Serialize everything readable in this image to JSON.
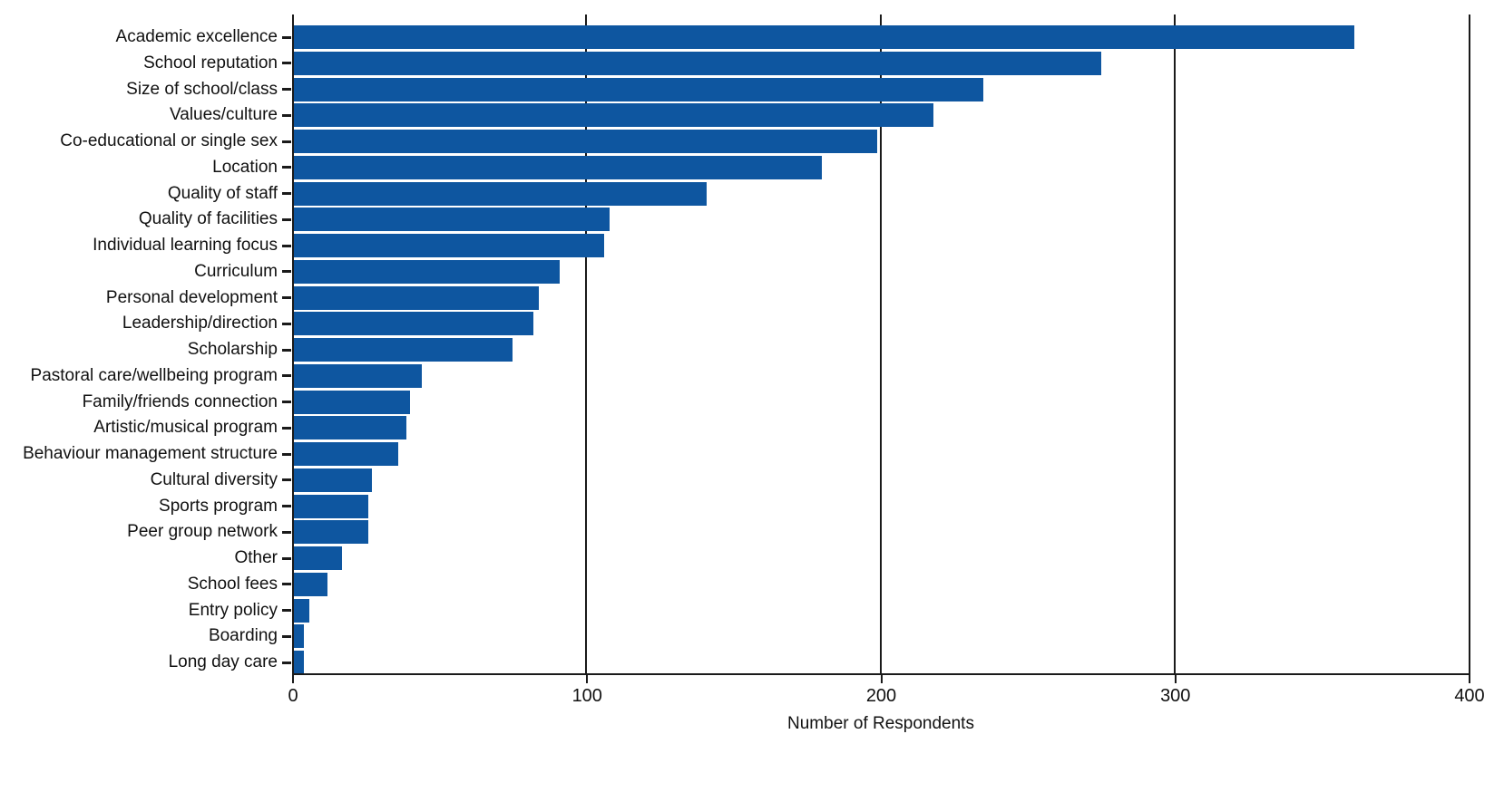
{
  "chart_data": {
    "type": "bar",
    "orientation": "horizontal",
    "title": "",
    "xlabel": "Number of Respondents",
    "ylabel": "",
    "xlim": [
      0,
      400
    ],
    "x_ticks": [
      0,
      100,
      200,
      300,
      400
    ],
    "gridlines_at": [
      100,
      200,
      300
    ],
    "legend": "none",
    "bar_color": "#0e56a0",
    "categories": [
      "Academic excellence",
      "School reputation",
      "Size of school/class",
      "Values/culture",
      "Co-educational or single sex",
      "Location",
      "Quality of staff",
      "Quality of facilities",
      "Individual learning focus",
      "Curriculum",
      "Personal development",
      "Leadership/direction",
      "Scholarship",
      "Pastoral care/wellbeing program",
      "Family/friends connection",
      "Artistic/musical program",
      "Behaviour management structure",
      "Cultural diversity",
      "Sports program",
      "Peer group network",
      "Other",
      "School fees",
      "Entry policy",
      "Boarding",
      "Long day care"
    ],
    "values": [
      361,
      275,
      235,
      218,
      199,
      180,
      141,
      108,
      106,
      91,
      84,
      82,
      75,
      44,
      40,
      39,
      36,
      27,
      26,
      26,
      17,
      12,
      6,
      4,
      4
    ]
  },
  "colors": {
    "bar": "#0e56a0",
    "axis": "#1a1a1a",
    "text": "#111111",
    "background": "#ffffff"
  }
}
